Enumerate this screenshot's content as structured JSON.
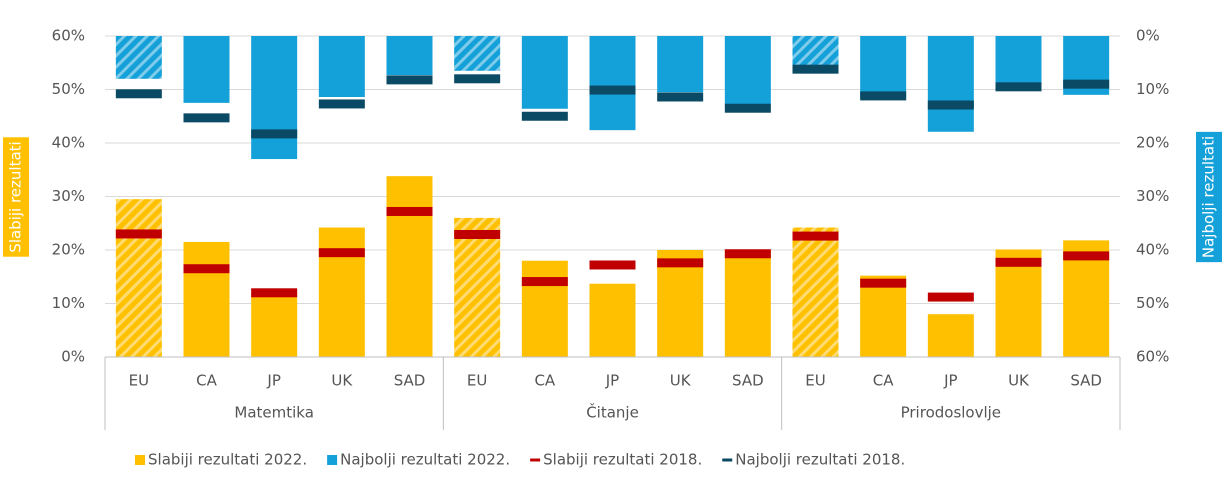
{
  "chart_data": {
    "type": "bar",
    "ylabel": "Slabiji rezultati",
    "y2label": "Najbolji rezultati",
    "ylim": [
      0,
      60
    ],
    "yticks": [
      {
        "value": 0,
        "label": "0%"
      },
      {
        "value": 10,
        "label": "10%"
      },
      {
        "value": 20,
        "label": "20%"
      },
      {
        "value": 30,
        "label": "30%"
      },
      {
        "value": 40,
        "label": "40%"
      },
      {
        "value": 50,
        "label": "50%"
      },
      {
        "value": 60,
        "label": "60%"
      }
    ],
    "y2lim": [
      60,
      0
    ],
    "y2ticks": [
      {
        "value": 0,
        "label": "0%"
      },
      {
        "value": 10,
        "label": "10%"
      },
      {
        "value": 20,
        "label": "20%"
      },
      {
        "value": 30,
        "label": "30%"
      },
      {
        "value": 40,
        "label": "40%"
      },
      {
        "value": 50,
        "label": "50%"
      },
      {
        "value": 60,
        "label": "60%"
      }
    ],
    "grid": true,
    "legend": "bottom",
    "hatched_category": "EU",
    "groups": [
      "Matemtika",
      "Čitanje",
      "Prirodoslovlje"
    ],
    "categories": [
      "EU",
      "CA",
      "JP",
      "UK",
      "SAD",
      "EU",
      "CA",
      "JP",
      "UK",
      "SAD",
      "EU",
      "CA",
      "JP",
      "UK",
      "SAD"
    ],
    "series": [
      {
        "name": "Slabiji rezultati 2022.",
        "color": "#ffc000",
        "style": "bar",
        "axis": "y",
        "values": [
          29.5,
          21.5,
          12,
          24.2,
          33.8,
          26,
          18,
          13.7,
          20,
          20,
          24.2,
          15.2,
          8,
          20.1,
          21.8
        ]
      },
      {
        "name": "Najbolji rezultati 2022.",
        "color": "#14a0d8",
        "style": "bar",
        "axis": "y2",
        "values": [
          8,
          12.5,
          23,
          11.4,
          7.3,
          6.5,
          13.6,
          17.6,
          10.5,
          12.9,
          5.8,
          11.6,
          17.9,
          9.5,
          11
        ]
      },
      {
        "name": "Slabiji rezultati 2018.",
        "color": "#c00000",
        "style": "marker",
        "axis": "y",
        "values": [
          23,
          16.5,
          12,
          19.5,
          27.2,
          22.9,
          14.1,
          17.2,
          17.6,
          19.3,
          22.6,
          13.8,
          11.2,
          17.7,
          18.9
        ]
      },
      {
        "name": "Najbolji rezultati 2018.",
        "color": "#0b4a64",
        "style": "marker",
        "axis": "y2",
        "values": [
          10.8,
          15.3,
          18.3,
          12.7,
          8.2,
          8,
          15,
          10.1,
          11.4,
          13.5,
          6.2,
          11.2,
          12.9,
          9.5,
          9
        ]
      }
    ]
  }
}
